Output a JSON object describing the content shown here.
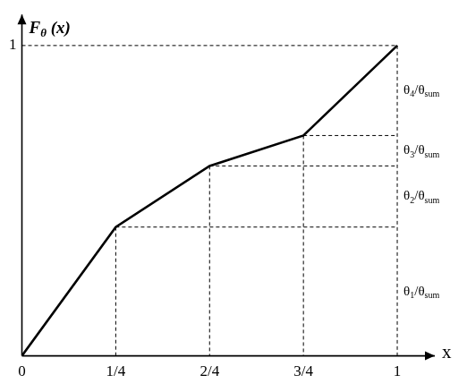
{
  "chart_data": {
    "type": "line",
    "x": [
      0,
      0.25,
      0.5,
      0.75,
      1
    ],
    "values": [
      0,
      0.415,
      0.612,
      0.71,
      1
    ],
    "color": "#000000",
    "xlim": [
      0,
      1.1
    ],
    "ylim": [
      0,
      1.1
    ],
    "xticks": [
      0,
      {
        "value": 0.25,
        "label": "1/4"
      },
      {
        "value": 0.5,
        "label": "2/4"
      },
      {
        "value": 0.75,
        "label": "3/4"
      },
      1
    ],
    "yticks": [
      1
    ],
    "x_label": "x",
    "y_label": "Fθ (x)",
    "segment_labels": [
      "θ1/θsum",
      "θ2/θsum",
      "θ3/θsum",
      "θ4/θsum"
    ],
    "grid": false
  }
}
